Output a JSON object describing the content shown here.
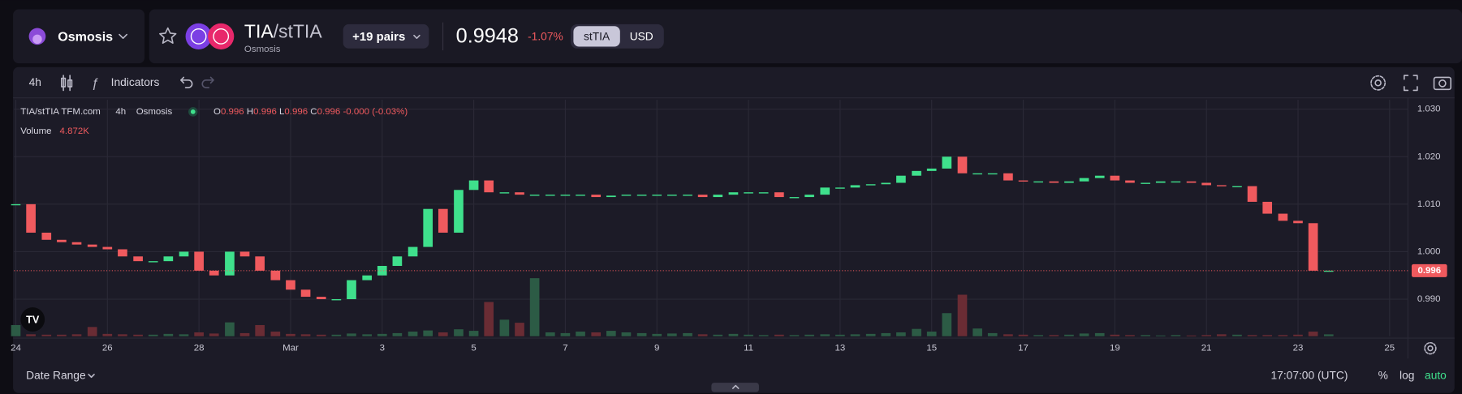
{
  "header": {
    "app": "Osmosis",
    "pair_base": "TIA",
    "pair_quote": "/stTIA",
    "venue": "Osmosis",
    "pairs_button": "+19 pairs",
    "price": "0.9948",
    "change": "-1.07%",
    "toggle": [
      "stTIA",
      "USD"
    ]
  },
  "toolbar": {
    "interval": "4h",
    "indicators": "Indicators"
  },
  "legend": {
    "symbol": "TIA/stTIA TFM.com",
    "interval": "4h",
    "venue": "Osmosis",
    "ohlc": [
      {
        "key": "O",
        "value": "0.996"
      },
      {
        "key": "H",
        "value": "0.996"
      },
      {
        "key": "L",
        "value": "0.996"
      },
      {
        "key": "C",
        "value": "0.996"
      }
    ],
    "change": "-0.000 (-0.03%)",
    "volume_name": "Volume",
    "volume_value": "4.872K"
  },
  "chart_data": {
    "type": "candlestick",
    "x": [
      0,
      0.33,
      0.67,
      1,
      1.33,
      1.67,
      2,
      2.33,
      2.67,
      3,
      3.33,
      3.67,
      4,
      4.33,
      4.67,
      5,
      5.33,
      5.67,
      6,
      6.33,
      6.67,
      7,
      7.33,
      7.67,
      8,
      8.33,
      8.67,
      9,
      9.33,
      9.67,
      10,
      10.33,
      10.67,
      11,
      11.33,
      11.67,
      12,
      12.33,
      12.67,
      13,
      13.33,
      13.67,
      14,
      14.33,
      14.67,
      15,
      15.33,
      15.67,
      16,
      16.33,
      16.67,
      17,
      17.33,
      17.67,
      18,
      18.33,
      18.67,
      19,
      19.33,
      19.67,
      20,
      20.33,
      20.67,
      21,
      21.33,
      21.67,
      22,
      22.33,
      22.67,
      23,
      23.33,
      23.67,
      24,
      24.33,
      24.67,
      25,
      25.33,
      25.67,
      26,
      26.33,
      26.67,
      27,
      27.33,
      27.67,
      28,
      28.33,
      28.67
    ],
    "open": [
      1.01,
      1.01,
      1.004,
      1.0025,
      1.002,
      1.0015,
      1.001,
      1.0005,
      0.999,
      0.998,
      0.998,
      0.999,
      1,
      0.996,
      0.995,
      1,
      0.999,
      0.996,
      0.994,
      0.992,
      0.9905,
      0.99,
      0.99,
      0.994,
      0.995,
      0.997,
      0.999,
      1.001,
      1.009,
      1.004,
      1.013,
      1.015,
      1.0125,
      1.0125,
      1.012,
      1.012,
      1.012,
      1.012,
      1.012,
      1.0115,
      1.0118,
      1.012,
      1.012,
      1.012,
      1.012,
      1.012,
      1.0115,
      1.012,
      1.0125,
      1.0125,
      1.0125,
      1.0115,
      1.0115,
      1.012,
      1.0135,
      1.0135,
      1.014,
      1.0142,
      1.0145,
      1.016,
      1.017,
      1.0175,
      1.02,
      1.0165,
      1.0165,
      1.0165,
      1.015,
      1.0148,
      1.0148,
      1.0145,
      1.0148,
      1.0155,
      1.016,
      1.015,
      1.0145,
      1.0145,
      1.0148,
      1.0148,
      1.0145,
      1.014,
      1.0138,
      1.0138,
      1.0105,
      1.008,
      1.0065,
      1.006,
      0.996
    ],
    "close": [
      1.01,
      1.004,
      1.0025,
      1.002,
      1.0015,
      1.001,
      1.0005,
      0.999,
      0.998,
      0.998,
      0.999,
      1,
      0.996,
      0.995,
      1,
      0.999,
      0.996,
      0.994,
      0.992,
      0.9905,
      0.99,
      0.99,
      0.994,
      0.995,
      0.997,
      0.999,
      1.001,
      1.009,
      1.004,
      1.013,
      1.015,
      1.0125,
      1.0125,
      1.012,
      1.012,
      1.012,
      1.012,
      1.012,
      1.0115,
      1.0118,
      1.012,
      1.012,
      1.012,
      1.012,
      1.012,
      1.0115,
      1.012,
      1.0125,
      1.0125,
      1.0125,
      1.0115,
      1.0115,
      1.012,
      1.0135,
      1.0135,
      1.014,
      1.0142,
      1.0145,
      1.016,
      1.017,
      1.0175,
      1.02,
      1.0165,
      1.0165,
      1.0165,
      1.015,
      1.0148,
      1.0148,
      1.0145,
      1.0148,
      1.0155,
      1.016,
      1.015,
      1.0145,
      1.0145,
      1.0148,
      1.0148,
      1.0145,
      1.014,
      1.0138,
      1.0138,
      1.0105,
      1.008,
      1.0065,
      1.006,
      0.996,
      0.996
    ],
    "volume": [
      29,
      5,
      4,
      4,
      5,
      24,
      6,
      5,
      4,
      4,
      6,
      5,
      10,
      7,
      36,
      8,
      29,
      12,
      6,
      5,
      4,
      4,
      7,
      5,
      6,
      8,
      12,
      15,
      10,
      18,
      14,
      89,
      43,
      35,
      151,
      10,
      8,
      12,
      10,
      14,
      10,
      8,
      6,
      7,
      8,
      5,
      4,
      6,
      4,
      3,
      4,
      3,
      4,
      5,
      4,
      5,
      6,
      8,
      10,
      19,
      12,
      60,
      108,
      20,
      8,
      5,
      4,
      3,
      3,
      4,
      7,
      8,
      4,
      3,
      3,
      2,
      3,
      2,
      3,
      5,
      4,
      3,
      3,
      3,
      4,
      12,
      4.872
    ],
    "xlim": [
      -0.04,
      30.4
    ],
    "xticks": [
      {
        "value": 0,
        "label": "24"
      },
      {
        "value": 2,
        "label": "26"
      },
      {
        "value": 4,
        "label": "28"
      },
      {
        "value": 6,
        "label": "Mar"
      },
      {
        "value": 8,
        "label": "3"
      },
      {
        "value": 10,
        "label": "5"
      },
      {
        "value": 12,
        "label": "7"
      },
      {
        "value": 14,
        "label": "9"
      },
      {
        "value": 16,
        "label": "11"
      },
      {
        "value": 18,
        "label": "13"
      },
      {
        "value": 20,
        "label": "15"
      },
      {
        "value": 22,
        "label": "17"
      },
      {
        "value": 24,
        "label": "19"
      },
      {
        "value": 26,
        "label": "21"
      },
      {
        "value": 28,
        "label": "23"
      },
      {
        "value": 30,
        "label": "25"
      }
    ],
    "ylim": [
      0.9822,
      1.032
    ],
    "yticks": [
      {
        "value": 0.99,
        "label": "0.990"
      },
      {
        "value": 1,
        "label": "1.000"
      },
      {
        "value": 1.01,
        "label": "1.010"
      },
      {
        "value": 1.02,
        "label": "1.020"
      },
      {
        "value": 1.03,
        "label": "1.030"
      }
    ],
    "volume_lim": [
      0,
      160
    ],
    "last_price": 0.996,
    "up_color": "#3fe08c",
    "down_color": "#f05a5e",
    "up_volume_color": "#2c5b45",
    "down_volume_color": "#6a2c34",
    "grid": true
  },
  "footer": {
    "date_range": "Date Range",
    "time": "17:07:00 (UTC)",
    "percent": "%",
    "log": "log",
    "auto": "auto"
  }
}
